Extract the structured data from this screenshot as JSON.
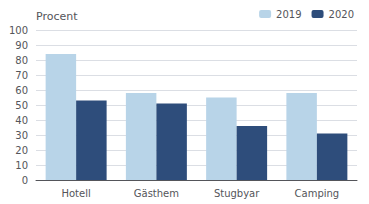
{
  "chart_data": {
    "type": "bar",
    "ylabel": "Procent",
    "categories": [
      "Hotell",
      "Gästhem",
      "Stugbyar",
      "Camping"
    ],
    "series": [
      {
        "name": "2019",
        "color": "#b8d4e8",
        "values": [
          84,
          58,
          55,
          58
        ]
      },
      {
        "name": "2020",
        "color": "#2e4d7b",
        "values": [
          53,
          51,
          36,
          31
        ]
      }
    ],
    "ylim": [
      0,
      100
    ],
    "yticks": [
      0,
      10,
      20,
      30,
      40,
      50,
      60,
      70,
      80,
      90,
      100
    ],
    "grid": true,
    "legend": "upper right"
  }
}
